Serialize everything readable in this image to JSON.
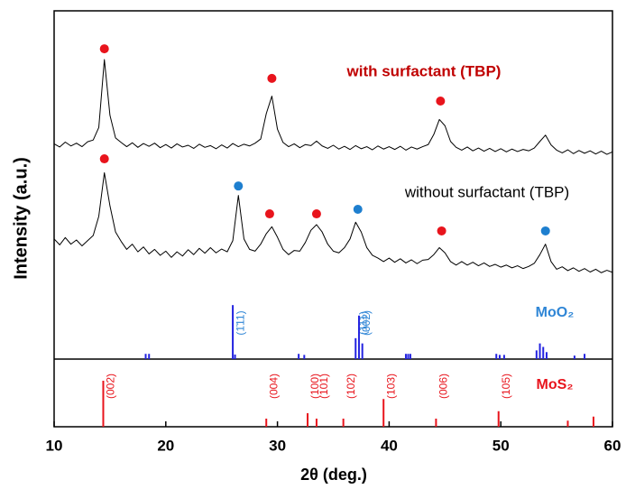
{
  "chart_data": [
    {
      "type": "line",
      "ylabel": "Intensity (a.u.)",
      "xlim": [
        10,
        60
      ],
      "ylim": [
        0,
        100
      ],
      "x": [
        10,
        10.5,
        11,
        11.5,
        12,
        12.5,
        13,
        13.5,
        14,
        14.5,
        15,
        15.5,
        16,
        16.5,
        17,
        17.5,
        18,
        18.5,
        19,
        19.5,
        20,
        20.5,
        21,
        21.5,
        22,
        22.5,
        23,
        23.5,
        24,
        24.5,
        25,
        25.5,
        26,
        26.5,
        27,
        27.5,
        28,
        28.5,
        29,
        29.5,
        30,
        30.5,
        31,
        31.5,
        32,
        32.5,
        33,
        33.5,
        34,
        34.5,
        35,
        35.5,
        36,
        36.5,
        37,
        37.5,
        38,
        38.5,
        39,
        39.5,
        40,
        40.5,
        41,
        41.5,
        42,
        42.5,
        43,
        43.5,
        44,
        44.5,
        45,
        45.5,
        46,
        46.5,
        47,
        47.5,
        48,
        48.5,
        49,
        49.5,
        50,
        50.5,
        51,
        51.5,
        52,
        52.5,
        53,
        53.5,
        54,
        54.5,
        55,
        55.5,
        56,
        56.5,
        57,
        57.5,
        58,
        58.5,
        59,
        59.5,
        60
      ],
      "series": [
        {
          "name": "with surfactant (TBP)",
          "color": "#000000",
          "name_color": "#c00000",
          "values": [
            61.8,
            60.9,
            62.3,
            61.2,
            62.0,
            61.0,
            62.4,
            62.9,
            66.5,
            86.0,
            70.0,
            63.5,
            62.2,
            61.0,
            62.1,
            60.8,
            61.9,
            61.1,
            62.0,
            60.7,
            61.6,
            60.6,
            61.8,
            60.9,
            61.4,
            60.5,
            61.7,
            60.8,
            61.3,
            60.4,
            61.5,
            60.6,
            61.9,
            61.0,
            61.7,
            61.2,
            62.0,
            63.2,
            70.5,
            75.5,
            66.0,
            62.2,
            61.0,
            61.8,
            60.7,
            61.6,
            61.3,
            62.6,
            61.2,
            60.5,
            61.4,
            60.3,
            61.1,
            60.2,
            61.3,
            60.4,
            61.0,
            60.1,
            61.2,
            60.3,
            61.0,
            60.2,
            61.1,
            60.0,
            60.9,
            60.3,
            61.0,
            61.6,
            64.5,
            68.8,
            67.0,
            62.5,
            60.8,
            60.0,
            60.9,
            59.8,
            60.6,
            59.7,
            60.5,
            59.6,
            60.4,
            59.5,
            60.3,
            59.6,
            60.2,
            59.8,
            60.6,
            62.5,
            64.3,
            61.5,
            60.0,
            59.2,
            60.1,
            59.0,
            59.9,
            59.1,
            59.8,
            58.9,
            59.7,
            58.8,
            59.5
          ]
        },
        {
          "name": "without surfactant (TBP)",
          "color": "#000000",
          "name_color": "#000000",
          "values": [
            34.5,
            32.8,
            34.9,
            33.0,
            34.2,
            32.5,
            34.0,
            35.5,
            41.0,
            53.5,
            44.0,
            36.5,
            33.8,
            31.5,
            33.0,
            30.8,
            32.2,
            30.2,
            31.5,
            29.8,
            31.0,
            29.2,
            30.8,
            29.6,
            31.4,
            30.0,
            31.8,
            30.4,
            32.0,
            30.5,
            31.6,
            30.8,
            34.0,
            47.0,
            34.5,
            31.5,
            31.0,
            33.0,
            36.0,
            38.0,
            35.0,
            31.5,
            30.0,
            31.2,
            31.0,
            33.5,
            37.0,
            38.6,
            36.5,
            33.0,
            31.0,
            30.5,
            32.0,
            34.5,
            39.3,
            36.5,
            32.0,
            29.8,
            29.0,
            28.0,
            29.0,
            27.8,
            28.8,
            27.6,
            28.5,
            27.4,
            28.4,
            28.6,
            30.0,
            32.0,
            30.5,
            28.0,
            27.0,
            28.0,
            27.0,
            27.8,
            26.8,
            27.6,
            26.6,
            27.2,
            26.4,
            27.0,
            26.2,
            26.8,
            26.0,
            26.6,
            27.5,
            30.0,
            33.0,
            28.0,
            25.8,
            26.5,
            25.4,
            26.2,
            25.2,
            26.0,
            25.0,
            25.8,
            24.8,
            25.5,
            24.9
          ]
        }
      ],
      "peak_markers": [
        {
          "x": 14.5,
          "y": 89.1,
          "color": "#e8141c"
        },
        {
          "x": 29.5,
          "y": 80.6,
          "color": "#e8141c"
        },
        {
          "x": 44.6,
          "y": 74.1,
          "color": "#e8141c"
        },
        {
          "x": 14.5,
          "y": 57.5,
          "color": "#e8141c"
        },
        {
          "x": 26.5,
          "y": 49.7,
          "color": "#1e7fcf"
        },
        {
          "x": 29.3,
          "y": 41.7,
          "color": "#e8141c"
        },
        {
          "x": 33.5,
          "y": 41.7,
          "color": "#e8141c"
        },
        {
          "x": 37.2,
          "y": 43.0,
          "color": "#1e7fcf"
        },
        {
          "x": 44.7,
          "y": 36.8,
          "color": "#e8141c"
        },
        {
          "x": 54.0,
          "y": 36.8,
          "color": "#1e7fcf"
        }
      ],
      "reference": {
        "name": "MoO₂",
        "color": "#2323e0",
        "label_color": "#2f86d6",
        "x": [
          18.2,
          18.5,
          26.0,
          26.2,
          31.9,
          32.4,
          37.0,
          37.3,
          37.6,
          41.5,
          41.7,
          41.9,
          49.6,
          49.9,
          50.3,
          53.2,
          53.5,
          53.8,
          54.1,
          56.6,
          57.5
        ],
        "values": [
          1.5,
          1.5,
          15.5,
          1.3,
          1.5,
          1.2,
          6.0,
          12.5,
          4.5,
          1.5,
          1.5,
          1.5,
          1.5,
          1.2,
          1.2,
          2.5,
          4.5,
          3.5,
          2.0,
          1.0,
          1.5
        ],
        "hkl": [
          null,
          null,
          "(1̄11)",
          null,
          null,
          null,
          "(111)",
          "(002)",
          null,
          null,
          null,
          null,
          null,
          null,
          null,
          null,
          null,
          null,
          null,
          null,
          null
        ]
      }
    },
    {
      "type": "stick",
      "xlabel": "2θ (deg.)",
      "xlim": [
        10,
        60
      ],
      "xticks": [
        10,
        20,
        30,
        40,
        50,
        60
      ],
      "ylim": [
        0,
        100
      ],
      "series": [
        {
          "name": "MoS₂",
          "color": "#e8141c",
          "x": [
            14.4,
            29.0,
            32.7,
            33.5,
            35.9,
            39.5,
            44.2,
            49.8,
            56.0,
            58.3
          ],
          "values": [
            68,
            12,
            20,
            12,
            12,
            41,
            12,
            23,
            9,
            15
          ],
          "hkl": [
            "(002)",
            "(004)",
            "(100)",
            "(101)",
            "(102)",
            "(103)",
            "(006)",
            "(105)",
            null,
            null
          ]
        }
      ]
    }
  ]
}
